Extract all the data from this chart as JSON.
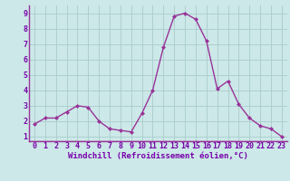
{
  "x": [
    0,
    1,
    2,
    3,
    4,
    5,
    6,
    7,
    8,
    9,
    10,
    11,
    12,
    13,
    14,
    15,
    16,
    17,
    18,
    19,
    20,
    21,
    22,
    23
  ],
  "y": [
    1.8,
    2.2,
    2.2,
    2.6,
    3.0,
    2.9,
    2.0,
    1.5,
    1.4,
    1.3,
    2.5,
    4.0,
    6.8,
    8.8,
    9.0,
    8.6,
    7.2,
    4.1,
    4.6,
    3.1,
    2.2,
    1.7,
    1.5,
    1.0
  ],
  "line_color": "#993399",
  "marker": "D",
  "marker_size": 2.0,
  "linewidth": 1.0,
  "bg_color": "#cce8e8",
  "grid_color": "#b0d0d0",
  "xlabel": "Windchill (Refroidissement éolien,°C)",
  "xlabel_color": "#7700aa",
  "xlabel_fontsize": 6.5,
  "tick_color": "#7700aa",
  "tick_fontsize": 6.0,
  "xlim": [
    -0.5,
    23.5
  ],
  "ylim": [
    0.7,
    9.5
  ],
  "yticks": [
    1,
    2,
    3,
    4,
    5,
    6,
    7,
    8,
    9
  ],
  "xticks": [
    0,
    1,
    2,
    3,
    4,
    5,
    6,
    7,
    8,
    9,
    10,
    11,
    12,
    13,
    14,
    15,
    16,
    17,
    18,
    19,
    20,
    21,
    22,
    23
  ]
}
